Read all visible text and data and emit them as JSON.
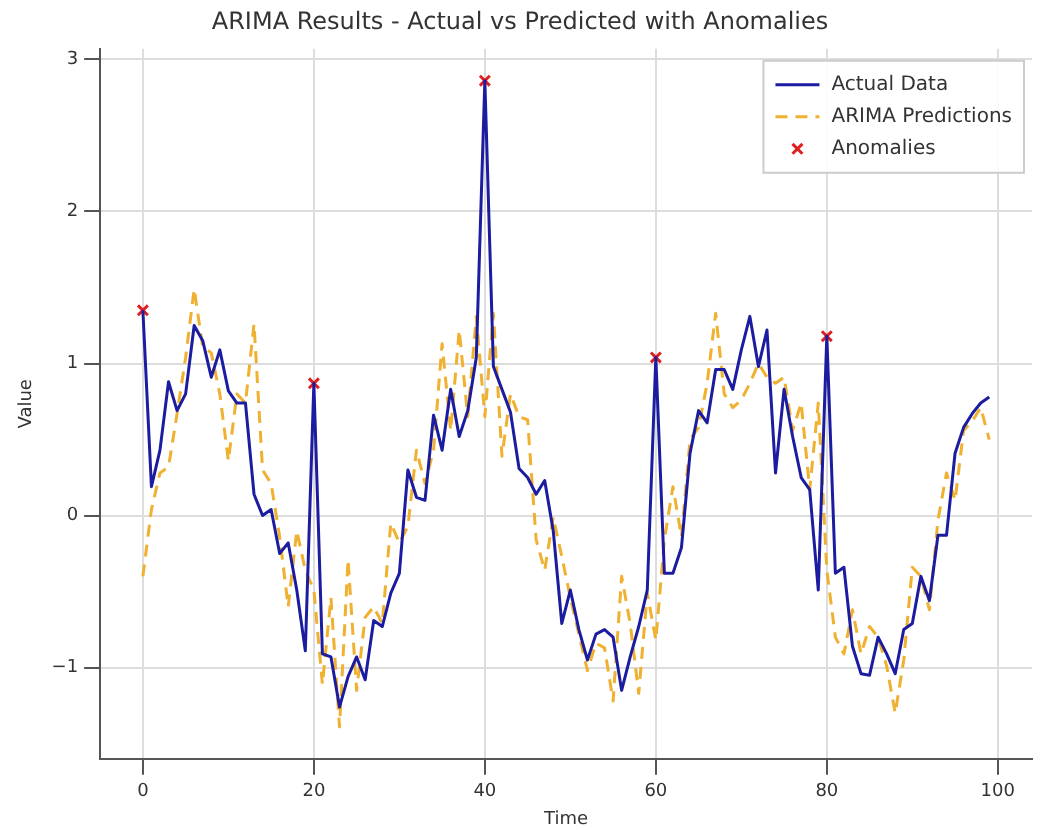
{
  "chart_data": {
    "type": "line",
    "title": "ARIMA Results - Actual vs Predicted with Anomalies",
    "xlabel": "Time",
    "ylabel": "Value",
    "x": [
      0,
      1,
      2,
      3,
      4,
      5,
      6,
      7,
      8,
      9,
      10,
      11,
      12,
      13,
      14,
      15,
      16,
      17,
      18,
      19,
      20,
      21,
      22,
      23,
      24,
      25,
      26,
      27,
      28,
      29,
      30,
      31,
      32,
      33,
      34,
      35,
      36,
      37,
      38,
      39,
      40,
      41,
      42,
      43,
      44,
      45,
      46,
      47,
      48,
      49,
      50,
      51,
      52,
      53,
      54,
      55,
      56,
      57,
      58,
      59,
      60,
      61,
      62,
      63,
      64,
      65,
      66,
      67,
      68,
      69,
      70,
      71,
      72,
      73,
      74,
      75,
      76,
      77,
      78,
      79,
      80,
      81,
      82,
      83,
      84,
      85,
      86,
      87,
      88,
      89,
      90,
      91,
      92,
      93,
      94,
      95,
      96,
      97,
      98,
      99
    ],
    "series": [
      {
        "name": "Actual Data",
        "color": "#1c1ca0",
        "line_style": "solid",
        "values": [
          1.35,
          0.19,
          0.43,
          0.88,
          0.69,
          0.8,
          1.25,
          1.15,
          0.91,
          1.09,
          0.82,
          0.74,
          0.74,
          0.14,
          0,
          0.04,
          -0.25,
          -0.18,
          -0.49,
          -0.89,
          0.87,
          -0.91,
          -0.93,
          -1.26,
          -1.06,
          -0.93,
          -1.08,
          -0.69,
          -0.73,
          -0.51,
          -0.38,
          0.3,
          0.12,
          0.1,
          0.66,
          0.43,
          0.83,
          0.52,
          0.69,
          1.04,
          2.86,
          0.98,
          0.83,
          0.68,
          0.31,
          0.25,
          0.14,
          0.23,
          -0.1,
          -0.71,
          -0.49,
          -0.75,
          -0.95,
          -0.78,
          -0.75,
          -0.8,
          -1.15,
          -0.93,
          -0.73,
          -0.49,
          1.04,
          -0.38,
          -0.38,
          -0.21,
          0.41,
          0.69,
          0.61,
          0.96,
          0.96,
          0.83,
          1.09,
          1.31,
          0.98,
          1.22,
          0.28,
          0.83,
          0.52,
          0.25,
          0.17,
          -0.49,
          1.18,
          -0.38,
          -0.34,
          -0.86,
          -1.04,
          -1.05,
          -0.8,
          -0.91,
          -1.04,
          -0.75,
          -0.71,
          -0.4,
          -0.56,
          -0.13,
          -0.13,
          0.41,
          0.58,
          0.67,
          0.74,
          0.78
        ]
      },
      {
        "name": "ARIMA Predictions",
        "color": "#f0b030",
        "line_style": "dashed",
        "values": [
          -0.4,
          0.04,
          0.28,
          0.32,
          0.67,
          1.04,
          1.49,
          1.11,
          1.07,
          0.8,
          0.36,
          0.8,
          0.74,
          1.26,
          0.3,
          0.21,
          -0.14,
          -0.6,
          -0.1,
          -0.36,
          -0.49,
          -1.11,
          -0.54,
          -1.39,
          -0.29,
          -1.15,
          -0.67,
          -0.6,
          -0.71,
          -0.05,
          -0.18,
          -0.07,
          0.43,
          0.21,
          0.43,
          1.13,
          0.56,
          1.22,
          0.65,
          1.31,
          0.65,
          1.33,
          0.39,
          0.8,
          0.65,
          0.63,
          -0.16,
          -0.36,
          -0.01,
          -0.27,
          -0.54,
          -0.78,
          -1.02,
          -0.84,
          -0.87,
          -1.22,
          -0.4,
          -0.71,
          -1.17,
          -0.51,
          -0.82,
          -0.16,
          0.19,
          -0.14,
          0.5,
          0.58,
          0.87,
          1.33,
          0.8,
          0.71,
          0.76,
          0.87,
          1,
          0.91,
          0.87,
          0.91,
          0.56,
          0.74,
          0.17,
          0.74,
          -0.36,
          -0.8,
          -0.91,
          -0.62,
          -0.91,
          -0.73,
          -0.8,
          -0.99,
          -1.3,
          -0.95,
          -0.34,
          -0.4,
          -0.62,
          -0.03,
          0.28,
          0.1,
          0.56,
          0.62,
          0.71,
          0.5
        ]
      },
      {
        "name": "Anomalies",
        "type": "scatter",
        "color": "#e02020",
        "marker": "cross",
        "x": [
          0,
          20,
          40,
          60,
          80
        ],
        "values": [
          1.35,
          0.87,
          2.86,
          1.04,
          1.18
        ]
      }
    ],
    "xlim": [
      -5,
      104
    ],
    "xticks": [
      0,
      20,
      40,
      60,
      80,
      100
    ],
    "ylim": [
      -1.6,
      3.07
    ],
    "yticks": [
      -1,
      0,
      1,
      2,
      3
    ],
    "grid": true,
    "legend": "top right"
  }
}
